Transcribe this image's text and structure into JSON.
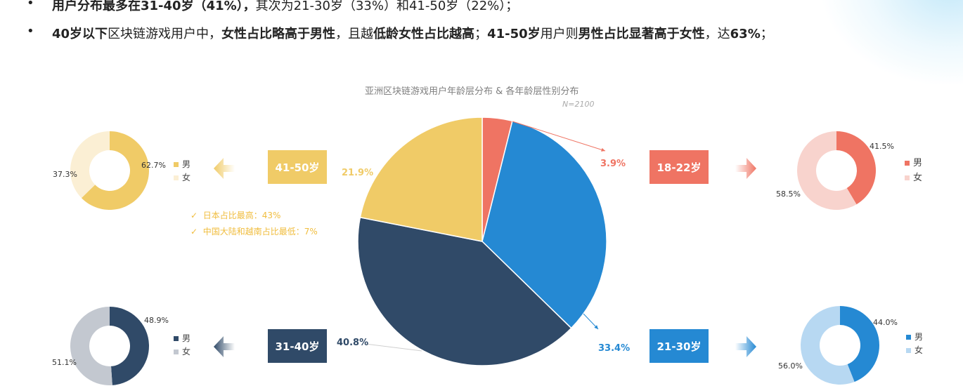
{
  "bullets": [
    {
      "dot": "•",
      "segments": [
        {
          "t": "用户分布最多在31-40岁（41%），",
          "b": true
        },
        {
          "t": "其次为21-30岁（33%）和41-50岁（22%）；",
          "b": false
        }
      ]
    },
    {
      "dot": "•",
      "segments": [
        {
          "t": "40岁以下",
          "b": true
        },
        {
          "t": "区块链游戏用户中，",
          "b": false
        },
        {
          "t": "女性占比略高于男性",
          "b": true
        },
        {
          "t": "，且越",
          "b": false
        },
        {
          "t": "低龄女性占比越高",
          "b": true
        },
        {
          "t": "；",
          "b": false
        },
        {
          "t": "41-50岁",
          "b": true
        },
        {
          "t": "用户则",
          "b": false
        },
        {
          "t": "男性占比显著高于女性",
          "b": true
        },
        {
          "t": "，达",
          "b": false
        },
        {
          "t": "63%",
          "b": true
        },
        {
          "t": "；",
          "b": false
        }
      ]
    }
  ],
  "notes": [
    {
      "mark": "✓",
      "text": "日本占比最高：43%"
    },
    {
      "mark": "✓",
      "text": "中国大陆和越南占比最低：7%"
    }
  ],
  "chart_data": [
    {
      "type": "pie",
      "title": "亚洲区块链游戏用户年龄层分布 & 各年龄层性别分布",
      "subtitle": "N=2100",
      "categories": [
        "18-22岁",
        "21-30岁",
        "31-40岁",
        "41-50岁"
      ],
      "values": [
        3.9,
        33.4,
        40.8,
        21.9
      ],
      "labels": [
        "3.9%",
        "33.4%",
        "40.8%",
        "21.9%"
      ],
      "colors": [
        "#ef7463",
        "#2589d3",
        "#304a68",
        "#f0cb67"
      ]
    },
    {
      "type": "pie",
      "variant": "donut",
      "group": "18-22岁",
      "categories": [
        "男",
        "女"
      ],
      "values": [
        41.5,
        58.5
      ],
      "labels": [
        "41.5%",
        "58.5%"
      ],
      "colors": [
        "#ef7463",
        "#f8d3cd"
      ]
    },
    {
      "type": "pie",
      "variant": "donut",
      "group": "21-30岁",
      "categories": [
        "男",
        "女"
      ],
      "values": [
        44.0,
        56.0
      ],
      "labels": [
        "44.0%",
        "56.0%"
      ],
      "colors": [
        "#2589d3",
        "#b7d8f2"
      ]
    },
    {
      "type": "pie",
      "variant": "donut",
      "group": "31-40岁",
      "categories": [
        "男",
        "女"
      ],
      "values": [
        48.9,
        51.1
      ],
      "labels": [
        "48.9%",
        "51.1%"
      ],
      "colors": [
        "#304a68",
        "#c3c8d0"
      ]
    },
    {
      "type": "pie",
      "variant": "donut",
      "group": "41-50岁",
      "categories": [
        "男",
        "女"
      ],
      "values": [
        62.7,
        37.3
      ],
      "labels": [
        "62.7%",
        "37.3%"
      ],
      "colors": [
        "#f0cb67",
        "#fbefd4"
      ]
    }
  ]
}
